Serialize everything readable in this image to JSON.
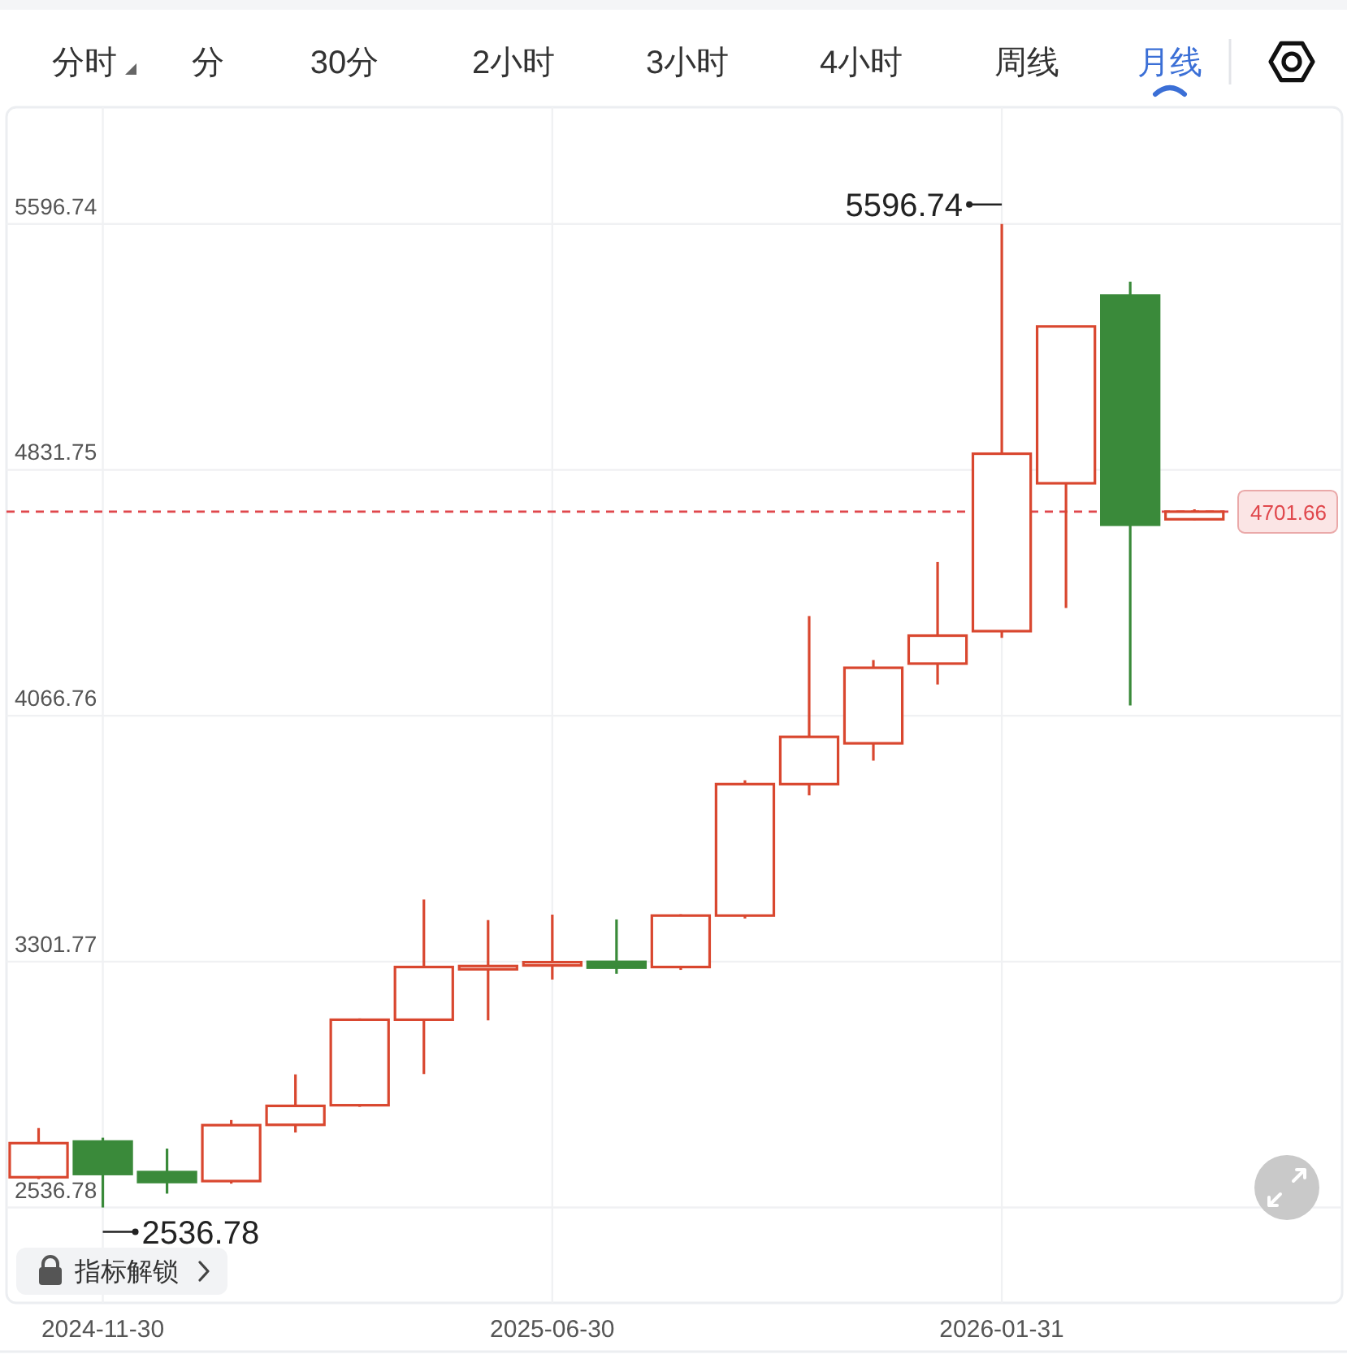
{
  "chart_data": {
    "type": "candlestick",
    "categories": [
      null,
      "2024-11-30",
      null,
      null,
      null,
      null,
      null,
      null,
      "2025-06-30",
      null,
      null,
      null,
      null,
      null,
      null,
      "2026-01-31",
      null,
      null,
      null
    ],
    "ohlc": [
      [
        2631,
        2784,
        2625,
        2737
      ],
      [
        2742,
        2754,
        2536.78,
        2641
      ],
      [
        2647,
        2720,
        2580,
        2616
      ],
      [
        2619,
        2809,
        2611,
        2793
      ],
      [
        2794,
        2951,
        2770,
        2853
      ],
      [
        2855,
        3125,
        2850,
        3121
      ],
      [
        3121,
        3495,
        2952,
        3285
      ],
      [
        3283,
        3431,
        3119,
        3288
      ],
      [
        3290,
        3448,
        3246,
        3300
      ],
      [
        3301,
        3433,
        3264,
        3283
      ],
      [
        3285,
        3449,
        3276,
        3445
      ],
      [
        3445,
        3866,
        3436,
        3854
      ],
      [
        3854,
        4377,
        3819,
        4001
      ],
      [
        3981,
        4240,
        3927,
        4216
      ],
      [
        4229,
        4545,
        4164,
        4316
      ],
      [
        4330,
        5596.74,
        4309,
        4882
      ],
      [
        4790,
        5280,
        4402,
        5278
      ],
      [
        5374,
        5417,
        4099,
        4661
      ],
      [
        4678,
        4709,
        4675,
        4701.66
      ]
    ],
    "colors": [
      "#d9472f",
      "#3a8a3a",
      "#3a8a3a",
      "#d9472f",
      "#d9472f",
      "#d9472f",
      "#d9472f",
      "#d9472f",
      "#d9472f",
      "#3a8a3a",
      "#d9472f",
      "#d9472f",
      "#d9472f",
      "#d9472f",
      "#d9472f",
      "#d9472f",
      "#d9472f",
      "#3a8a3a",
      "#d9472f"
    ],
    "ylim": [
      2240,
      5960
    ],
    "yticks": [
      2536.78,
      3301.77,
      4066.76,
      4831.75,
      5596.74
    ],
    "grid": true,
    "ref_lines": [
      {
        "axis": "y",
        "value": 4701.66,
        "label": "4701.66",
        "color": "#e0474c",
        "line_style": "dashed"
      }
    ],
    "annotations": [
      "分时",
      "分",
      "30分",
      "2小时",
      "3小时",
      "4小时",
      "周线",
      "月线",
      "指标解锁",
      {
        "text": "5596.74",
        "x": "2026-01-31",
        "y": 5596.74
      },
      {
        "text": "2536.78",
        "x": "2024-11-30",
        "y": 2536.78
      }
    ]
  }
}
